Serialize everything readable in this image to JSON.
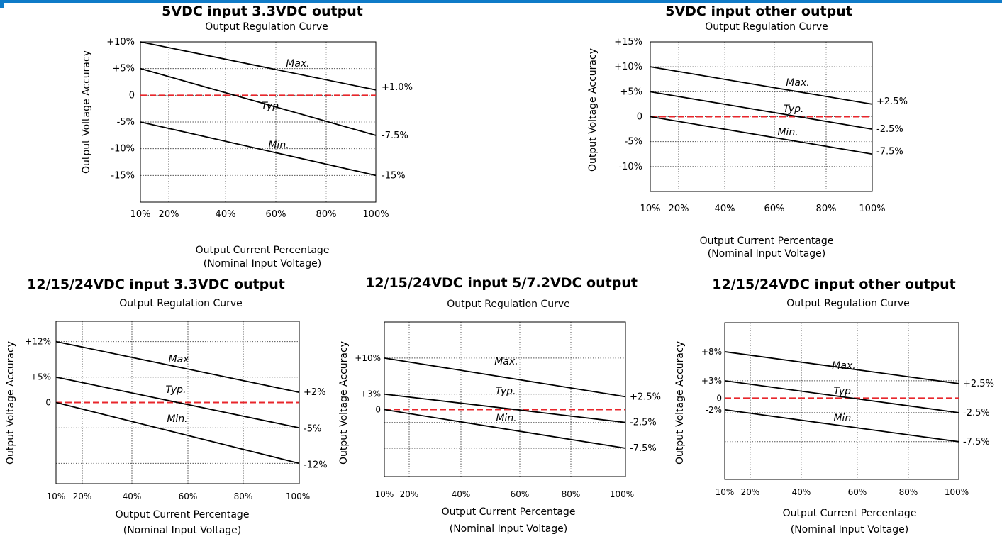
{
  "colors": {
    "accent_bar": "#0f7bc8",
    "typical_reference": "#e8262b",
    "curve": "#000000",
    "grid": "#555555"
  },
  "chart_data": [
    {
      "type": "line",
      "title": "5VDC input 3.3VDC output",
      "subtitle": "Output Regulation Curve",
      "ylabel": "Output Voltage Accuracy",
      "xlabel": "Output Current Percentage",
      "xlabel2": "(Nominal Input Voltage)",
      "x_ticks": [
        "10%",
        "20%",
        "40%",
        "60%",
        "80%",
        "100%"
      ],
      "y_ticks": [
        "+10%",
        "+5%",
        "0",
        "-5%",
        "-10%",
        "-15%"
      ],
      "x": [
        10,
        100
      ],
      "series": [
        {
          "name": "Max.",
          "values": [
            10,
            1.0
          ],
          "end_label": "+1.0%"
        },
        {
          "name": "Typ.",
          "values": [
            5,
            -7.5
          ],
          "end_label": "-7.5%"
        },
        {
          "name": "Min.",
          "values": [
            -5,
            -15
          ],
          "end_label": "-15%"
        }
      ],
      "reference_line": 0,
      "grid": true
    },
    {
      "type": "line",
      "title": "5VDC input other output",
      "subtitle": "Output Regulation Curve",
      "ylabel": "Output Voltage Accuracy",
      "xlabel": "Output Current Percentage",
      "xlabel2": "(Nominal Input Voltage)",
      "x_ticks": [
        "10%",
        "20%",
        "40%",
        "60%",
        "80%",
        "100%"
      ],
      "y_ticks": [
        "+15%",
        "+10%",
        "+5%",
        "0",
        "-5%",
        "-10%"
      ],
      "x": [
        10,
        100
      ],
      "series": [
        {
          "name": "Max.",
          "values": [
            10,
            2.5
          ],
          "end_label": "+2.5%"
        },
        {
          "name": "Typ.",
          "values": [
            5,
            -2.5
          ],
          "end_label": "-2.5%"
        },
        {
          "name": "Min.",
          "values": [
            0,
            -7.5
          ],
          "end_label": "-7.5%"
        }
      ],
      "reference_line": 0,
      "grid": true
    },
    {
      "type": "line",
      "title": "12/15/24VDC input 3.3VDC output",
      "subtitle": "Output Regulation Curve",
      "ylabel": "Output Voltage Accuracy",
      "xlabel": "Output Current Percentage",
      "xlabel2": "(Nominal Input Voltage)",
      "x_ticks": [
        "10%",
        "20%",
        "40%",
        "60%",
        "80%",
        "100%"
      ],
      "y_ticks": [
        "+12%",
        "+5%",
        "0"
      ],
      "x": [
        10,
        100
      ],
      "series": [
        {
          "name": "Max",
          "values": [
            12,
            2
          ],
          "end_label": "+2%"
        },
        {
          "name": "Typ.",
          "values": [
            5,
            -5
          ],
          "end_label": "-5%"
        },
        {
          "name": "Min.",
          "values": [
            0,
            -12
          ],
          "end_label": "-12%"
        }
      ],
      "reference_line": 0,
      "grid": true
    },
    {
      "type": "line",
      "title": "12/15/24VDC input 5/7.2VDC output",
      "subtitle": "Output Regulation Curve",
      "ylabel": "Output Voltage Accuracy",
      "xlabel": "Output Current Percentage",
      "xlabel2": "(Nominal Input Voltage)",
      "x_ticks": [
        "10%",
        "20%",
        "40%",
        "60%",
        "80%",
        "100%"
      ],
      "y_ticks": [
        "+10%",
        "+3%",
        "0"
      ],
      "x": [
        10,
        100
      ],
      "series": [
        {
          "name": "Max.",
          "values": [
            10,
            2.5
          ],
          "end_label": "+2.5%"
        },
        {
          "name": "Typ.",
          "values": [
            3,
            -2.5
          ],
          "end_label": "-2.5%"
        },
        {
          "name": "Min.",
          "values": [
            0,
            -7.5
          ],
          "end_label": "-7.5%"
        }
      ],
      "reference_line": 0,
      "grid": true
    },
    {
      "type": "line",
      "title": "12/15/24VDC input other output",
      "subtitle": "Output Regulation Curve",
      "ylabel": "Output Voltage Accuracy",
      "xlabel": "Output Current Percentage",
      "xlabel2": "(Nominal Input Voltage)",
      "x_ticks": [
        "10%",
        "20%",
        "40%",
        "60%",
        "80%",
        "100%"
      ],
      "y_ticks": [
        "+8%",
        "+3%",
        "0",
        "-2%"
      ],
      "x": [
        10,
        100
      ],
      "series": [
        {
          "name": "Max.",
          "values": [
            8,
            2.5
          ],
          "end_label": "+2.5%"
        },
        {
          "name": "Typ.",
          "values": [
            3,
            -2.5
          ],
          "end_label": "-2.5%"
        },
        {
          "name": "Min.",
          "values": [
            -2,
            -7.5
          ],
          "end_label": "-7.5%"
        }
      ],
      "reference_line": 0,
      "grid": true
    }
  ]
}
